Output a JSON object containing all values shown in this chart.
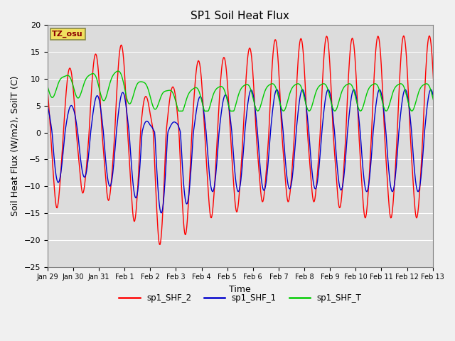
{
  "title": "SP1 Soil Heat Flux",
  "xlabel": "Time",
  "ylabel": "Soil Heat Flux (W/m2), SoilT (C)",
  "ylim": [
    -25,
    20
  ],
  "yticks": [
    -25,
    -20,
    -15,
    -10,
    -5,
    0,
    5,
    10,
    15,
    20
  ],
  "xtick_labels": [
    "Jan 29",
    "Jan 30",
    "Jan 31",
    "Feb 1",
    "Feb 2",
    "Feb 3",
    "Feb 4",
    "Feb 5",
    "Feb 6",
    "Feb 7",
    "Feb 8",
    "Feb 9",
    "Feb 10",
    "Feb 11",
    "Feb 12",
    "Feb 13"
  ],
  "color_shf2": "#FF0000",
  "color_shf1": "#0000CC",
  "color_shft": "#00CC00",
  "fig_bg": "#F0F0F0",
  "plot_bg": "#DCDCDC",
  "legend_labels": [
    "sp1_SHF_2",
    "sp1_SHF_1",
    "sp1_SHF_T"
  ],
  "tz_label": "TZ_osu",
  "title_fontsize": 11,
  "axis_fontsize": 9,
  "tick_fontsize": 8
}
